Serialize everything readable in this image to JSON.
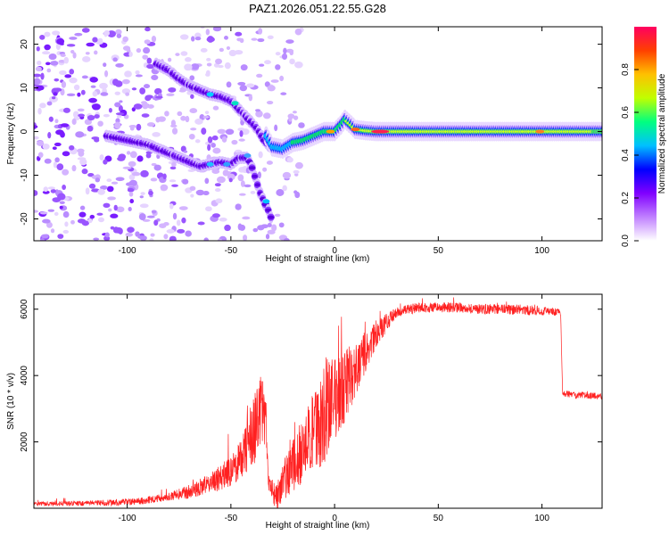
{
  "title": "PAZ1.2026.051.22.55.G28",
  "chart_data": [
    {
      "type": "heatmap",
      "name": "spectrogram",
      "xlabel": "Height of straight line (km)",
      "ylabel": "Frequency (Hz)",
      "xlim": [
        -145,
        129
      ],
      "ylim": [
        -25,
        24
      ],
      "x_ticks": [
        -100,
        -50,
        0,
        50,
        100
      ],
      "y_ticks": [
        -20,
        -10,
        0,
        10,
        20
      ],
      "colorbar": {
        "label": "Normalized spectral amplitude",
        "range": [
          0,
          1
        ],
        "ticks": [
          "0.0",
          "0.2",
          "0.4",
          "0.6",
          "0.8"
        ],
        "colors": [
          "#ffffff",
          "#c080ff",
          "#8000ff",
          "#0000ff",
          "#00c0ff",
          "#00ff80",
          "#c0ff00",
          "#ffc000",
          "#ff4000",
          "#ff0060"
        ]
      },
      "ridge_upper": {
        "x": [
          -86,
          -80,
          -75,
          -70,
          -65,
          -60,
          -55,
          -50,
          -46,
          -42,
          -38,
          -34,
          -31,
          -28
        ],
        "y": [
          15.5,
          14,
          12,
          10.5,
          9.5,
          8.5,
          8,
          7,
          5,
          3,
          1,
          -2,
          -3.5,
          -4.5
        ]
      },
      "ridge_lower": {
        "x": [
          -110,
          -100,
          -90,
          -80,
          -75,
          -70,
          -65,
          -60,
          -55,
          -50,
          -46,
          -42,
          -40,
          -38,
          -36,
          -34,
          -32,
          -30
        ],
        "y": [
          -1,
          -2,
          -3,
          -5,
          -6,
          -7,
          -8,
          -7.5,
          -7,
          -7.5,
          -6,
          -6,
          -8,
          -11,
          -14,
          -16,
          -18,
          -20.5
        ]
      },
      "main_trace": {
        "x": [
          -33,
          -30,
          -25,
          -20,
          -15,
          -10,
          -5,
          0,
          3,
          5,
          8,
          10,
          15,
          20,
          30,
          40,
          50,
          60,
          70,
          80,
          90,
          100,
          110,
          120,
          129
        ],
        "y": [
          -1,
          -3.5,
          -4,
          -2.5,
          -2,
          -1,
          0,
          0,
          1.5,
          2.8,
          1.5,
          0.5,
          0.2,
          0,
          0,
          0,
          0,
          0,
          0,
          0,
          0,
          0,
          0,
          0,
          0
        ]
      }
    },
    {
      "type": "line",
      "name": "snr",
      "xlabel": "Height of straight line (km)",
      "ylabel": "SNR (10 * v/v)",
      "xlim": [
        -145,
        129
      ],
      "ylim": [
        0,
        6450
      ],
      "x_ticks": [
        -100,
        -50,
        0,
        50,
        100
      ],
      "y_ticks": [
        2000,
        4000,
        6000
      ],
      "color": "#ff2020",
      "envelope": {
        "x": [
          -145,
          -120,
          -100,
          -90,
          -80,
          -70,
          -60,
          -50,
          -45,
          -40,
          -37,
          -35,
          -33,
          -32,
          -30,
          -28,
          -25,
          -20,
          -15,
          -10,
          -5,
          0,
          5,
          10,
          15,
          20,
          25,
          30,
          40,
          50,
          60,
          70,
          80,
          90,
          100,
          105,
          108,
          109,
          110,
          111,
          115,
          120,
          129
        ],
        "y": [
          130,
          150,
          180,
          250,
          350,
          500,
          750,
          1100,
          1500,
          2200,
          2800,
          3000,
          2500,
          1000,
          500,
          400,
          800,
          1300,
          1800,
          2300,
          2800,
          3300,
          3700,
          4100,
          4700,
          5200,
          5600,
          5900,
          6050,
          6050,
          6050,
          6000,
          6000,
          5980,
          5950,
          5920,
          5900,
          5850,
          3450,
          3450,
          3420,
          3400,
          3380
        ]
      },
      "noise_amplitude": {
        "x": [
          -145,
          -80,
          -60,
          -45,
          -38,
          -34,
          -30,
          -20,
          -10,
          -5,
          0,
          10,
          20,
          30,
          100,
          110,
          129
        ],
        "y": [
          60,
          120,
          300,
          600,
          1200,
          900,
          400,
          800,
          1200,
          1500,
          1300,
          900,
          400,
          150,
          150,
          100,
          100
        ]
      }
    }
  ]
}
